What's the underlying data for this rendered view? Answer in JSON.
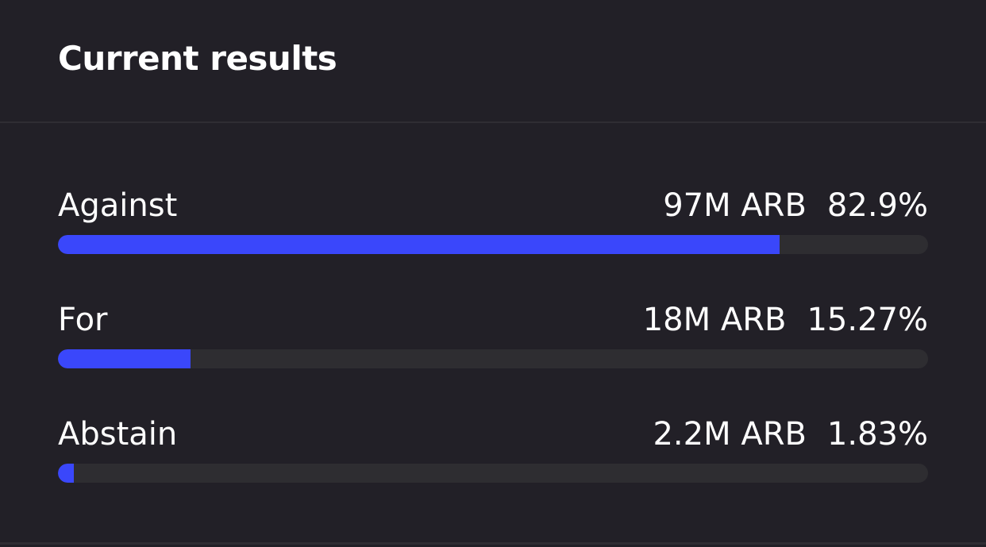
{
  "header": {
    "title": "Current results"
  },
  "results": {
    "rows": [
      {
        "label": "Against",
        "amount": "97M ARB",
        "percent": 82.9,
        "percent_label": "82.9%"
      },
      {
        "label": "For",
        "amount": "18M ARB",
        "percent": 15.27,
        "percent_label": "15.27%"
      },
      {
        "label": "Abstain",
        "amount": "2.2M ARB",
        "percent": 1.83,
        "percent_label": "1.83%"
      }
    ]
  }
}
